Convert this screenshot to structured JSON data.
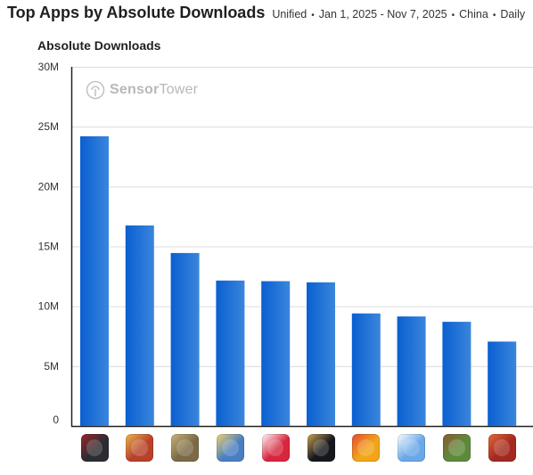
{
  "header": {
    "title": "Top Apps by Absolute Downloads",
    "filters": [
      "Unified",
      "Jan 1, 2025 - Nov 7, 2025",
      "China",
      "Daily"
    ],
    "separator": "•"
  },
  "watermark": {
    "brand": "Sensor",
    "suffix": "Tower"
  },
  "colors": {
    "bar_top": "#0a5fd1",
    "bar_bottom": "#3a86dc",
    "grid": "#dcdcdc",
    "axis": "#222222"
  },
  "chart_data": {
    "type": "bar",
    "title": "Absolute Downloads",
    "xlabel": "",
    "ylabel": "",
    "ylim": [
      0,
      30000000
    ],
    "yticks": [
      {
        "value": 0,
        "label": "0"
      },
      {
        "value": 5000000,
        "label": "5M"
      },
      {
        "value": 10000000,
        "label": "10M"
      },
      {
        "value": 15000000,
        "label": "15M"
      },
      {
        "value": 20000000,
        "label": "20M"
      },
      {
        "value": 25000000,
        "label": "25M"
      },
      {
        "value": 30000000,
        "label": "30M"
      }
    ],
    "grid": true,
    "values": [
      24200000,
      16750000,
      14450000,
      12150000,
      12100000,
      12000000,
      9400000,
      9150000,
      8700000,
      7050000
    ],
    "category_icons": [
      {
        "icon": "dark-warrior-game-icon",
        "bg": "#2c2c33",
        "accent": "#9a2626"
      },
      {
        "icon": "hero-fighter-game-icon",
        "bg": "#b8412a",
        "accent": "#e8b650"
      },
      {
        "icon": "battle-royale-game-icon",
        "bg": "#7b6a45",
        "accent": "#c9b27a"
      },
      {
        "icon": "cute-adventure-game-icon",
        "bg": "#4a7ec2",
        "accent": "#f1d36b"
      },
      {
        "icon": "red-shield-app-icon",
        "bg": "#d7263d",
        "accent": "#ffffff"
      },
      {
        "icon": "dark-fantasy-game-icon",
        "bg": "#15171d",
        "accent": "#c9a457"
      },
      {
        "icon": "party-characters-game-icon",
        "bg": "#f2a516",
        "accent": "#e24b35"
      },
      {
        "icon": "snow-adventure-game-icon",
        "bg": "#6aa8e8",
        "accent": "#ffffff"
      },
      {
        "icon": "block-world-game-icon",
        "bg": "#5d8a3a",
        "accent": "#8a5a34"
      },
      {
        "icon": "red-hair-heroine-game-icon",
        "bg": "#a3281f",
        "accent": "#e06a3a"
      }
    ]
  }
}
